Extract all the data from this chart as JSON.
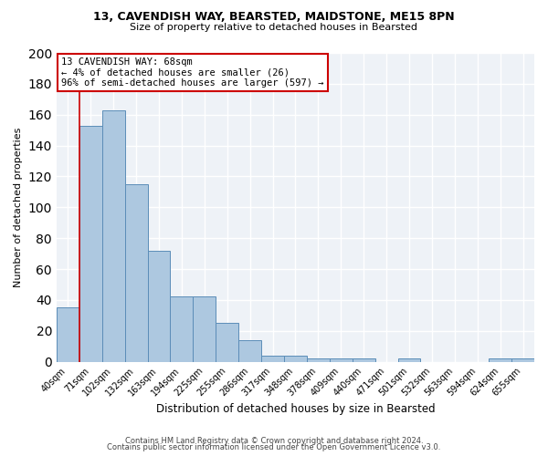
{
  "title1": "13, CAVENDISH WAY, BEARSTED, MAIDSTONE, ME15 8PN",
  "title2": "Size of property relative to detached houses in Bearsted",
  "xlabel": "Distribution of detached houses by size in Bearsted",
  "ylabel": "Number of detached properties",
  "categories": [
    "40sqm",
    "71sqm",
    "102sqm",
    "132sqm",
    "163sqm",
    "194sqm",
    "225sqm",
    "255sqm",
    "286sqm",
    "317sqm",
    "348sqm",
    "378sqm",
    "409sqm",
    "440sqm",
    "471sqm",
    "501sqm",
    "532sqm",
    "563sqm",
    "594sqm",
    "624sqm",
    "655sqm"
  ],
  "values": [
    35,
    153,
    163,
    115,
    72,
    42,
    42,
    25,
    14,
    4,
    4,
    2,
    2,
    2,
    0,
    2,
    0,
    0,
    0,
    2,
    2
  ],
  "bar_color": "#adc8e0",
  "bar_edge_color": "#5b8db8",
  "bar_width": 1.0,
  "annotation_line1": "13 CAVENDISH WAY: 68sqm",
  "annotation_line2": "← 4% of detached houses are smaller (26)",
  "annotation_line3": "96% of semi-detached houses are larger (597) →",
  "annotation_box_color": "#ffffff",
  "annotation_box_edge_color": "#cc0000",
  "red_line_x": 0.5,
  "ylim": [
    0,
    200
  ],
  "yticks": [
    0,
    20,
    40,
    60,
    80,
    100,
    120,
    140,
    160,
    180,
    200
  ],
  "footer1": "Contains HM Land Registry data © Crown copyright and database right 2024.",
  "footer2": "Contains public sector information licensed under the Open Government Licence v3.0.",
  "background_color": "#eef2f7"
}
